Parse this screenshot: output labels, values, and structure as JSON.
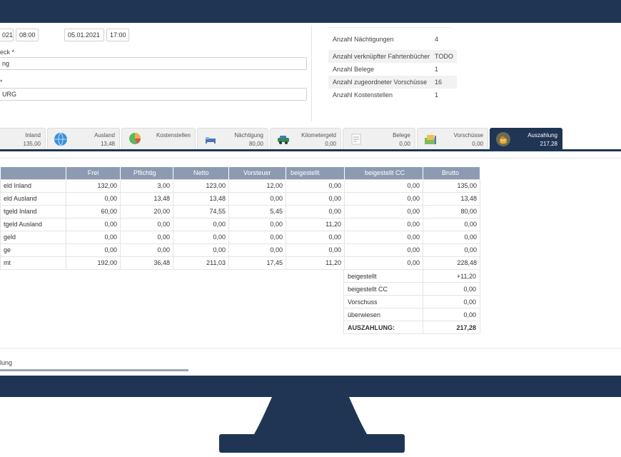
{
  "form": {
    "start_date": "021",
    "start_time": "08:00",
    "end_date": "05.01.2021",
    "end_time": "17:00",
    "purpose_label": "eck *",
    "purpose_value": "ng",
    "destination_label": "*",
    "destination_value": "URG"
  },
  "info": [
    {
      "label": "Anzahl Nächtigungen",
      "value": "4"
    },
    {
      "label": "Anzahl verknüpfter Fahrtenbücher",
      "value": "TODO"
    },
    {
      "label": "Anzahl Belege",
      "value": "1"
    },
    {
      "label": "Anzahl zugeordneter Vorschüsse",
      "value": "16"
    },
    {
      "label": "Anzahl Kostenstellen",
      "value": "1"
    }
  ],
  "tabs": [
    {
      "label": "Inland",
      "value": "135,00",
      "icon": "none"
    },
    {
      "label": "Ausland",
      "value": "13,48",
      "icon": "globe-icon"
    },
    {
      "label": "Kostenstellen",
      "value": "",
      "icon": "pie-chart-icon"
    },
    {
      "label": "Nächtigung",
      "value": "80,00",
      "icon": "bed-icon"
    },
    {
      "label": "Kilometergeld",
      "value": "0,00",
      "icon": "car-icon"
    },
    {
      "label": "Belege",
      "value": "0,00",
      "icon": "receipt-icon"
    },
    {
      "label": "Vorschüsse",
      "value": "0,00",
      "icon": "money-icon"
    },
    {
      "label": "Auszahlung",
      "value": "217,28",
      "icon": "coins-icon"
    }
  ],
  "table": {
    "headers": [
      "",
      "Frei",
      "Pflichtig",
      "Netto",
      "Vorsteuer",
      "beigestellt",
      "beigestellt CC",
      "Brutto"
    ],
    "rows": [
      [
        "eld Inland",
        "132,00",
        "3,00",
        "123,00",
        "12,00",
        "0,00",
        "0,00",
        "135,00"
      ],
      [
        "eld Ausland",
        "0,00",
        "13,48",
        "13,48",
        "0,00",
        "0,00",
        "0,00",
        "13,48"
      ],
      [
        "tgeld Inland",
        "60,00",
        "20,00",
        "74,55",
        "5,45",
        "0,00",
        "0,00",
        "80,00"
      ],
      [
        "tgeld Ausland",
        "0,00",
        "0,00",
        "0,00",
        "0,00",
        "11,20",
        "0,00",
        "0,00"
      ],
      [
        "geld",
        "0,00",
        "0,00",
        "0,00",
        "0,00",
        "0,00",
        "0,00",
        "0,00"
      ],
      [
        "ge",
        "0,00",
        "0,00",
        "0,00",
        "0,00",
        "0,00",
        "0,00",
        "0,00"
      ],
      [
        "mt",
        "192,00",
        "36,48",
        "211,03",
        "17,45",
        "11,20",
        "0,00",
        "228,48"
      ]
    ]
  },
  "summary": [
    {
      "label": "beigestellt",
      "value": "+11,20"
    },
    {
      "label": "beigestellt CC",
      "value": "0,00"
    },
    {
      "label": "Vorschuss",
      "value": "0,00"
    },
    {
      "label": "überwiesen",
      "value": "0,00"
    },
    {
      "label": "AUSZAHLUNG:",
      "value": "217,28"
    }
  ],
  "bottom_tab": "lung",
  "colors": {
    "frame": "#1f3553",
    "header": "#8c9bb1"
  }
}
